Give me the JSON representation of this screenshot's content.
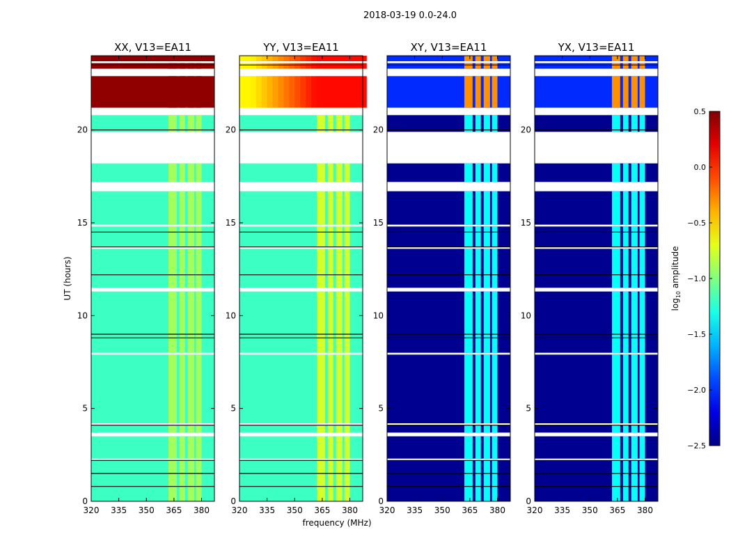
{
  "chart_data": {
    "type": "heatmap",
    "suptitle": "2018-03-19 0.0-24.0",
    "xlabel": "frequency (MHz)",
    "ylabel": "UT (hours)",
    "xlim": [
      320,
      387
    ],
    "ylim": [
      0,
      24
    ],
    "xticks": [
      "320",
      "335",
      "350",
      "365",
      "380"
    ],
    "yticks": [
      "0",
      "5",
      "10",
      "15",
      "20"
    ],
    "data_segments_hours": [
      [
        0,
        2.2
      ],
      [
        2.3,
        3.5
      ],
      [
        3.7,
        4.1
      ],
      [
        4.2,
        7.9
      ],
      [
        8.0,
        11.3
      ],
      [
        11.5,
        13.6
      ],
      [
        13.7,
        14.8
      ],
      [
        14.9,
        16.7
      ],
      [
        17.2,
        18.2
      ],
      [
        19.9,
        20.8
      ],
      [
        21.2,
        22.9
      ],
      [
        23.3,
        23.6
      ],
      [
        23.7,
        24.0
      ]
    ],
    "flag_lines_hours": [
      0.8,
      1.5,
      2.2,
      4.1,
      8.8,
      9.0,
      12.2,
      13.7,
      14.5,
      20.0,
      23.5
    ],
    "hot_band_mhz": [
      [
        362,
        366.5
      ],
      [
        368,
        371
      ],
      [
        372.5,
        376
      ],
      [
        377,
        380
      ]
    ],
    "panels": [
      {
        "title": "XX, V13=EA11",
        "base": -1.2,
        "hot": -0.9,
        "top_base": 0.45,
        "top_hot": 0.45
      },
      {
        "title": "YY, V13=EA11",
        "base": -1.2,
        "hot": -0.75,
        "top_base": -0.6,
        "top_hot": 0.1
      },
      {
        "title": "XY, V13=EA11",
        "base": -2.45,
        "hot": -1.35,
        "top_base": -2.0,
        "top_hot": -0.3
      },
      {
        "title": "YX, V13=EA11",
        "base": -2.45,
        "hot": -1.35,
        "top_base": -2.0,
        "top_hot": -0.3
      }
    ],
    "colorbar": {
      "label": "log10 amplitude",
      "label_main": "log",
      "label_sub": "10",
      "label_rest": " amplitude",
      "range": [
        -2.5,
        0.5
      ],
      "ticks": [
        "0.5",
        "0.0",
        "−0.5",
        "−1.0",
        "−1.5",
        "−2.0",
        "−2.5"
      ],
      "colormap": "jet"
    }
  }
}
